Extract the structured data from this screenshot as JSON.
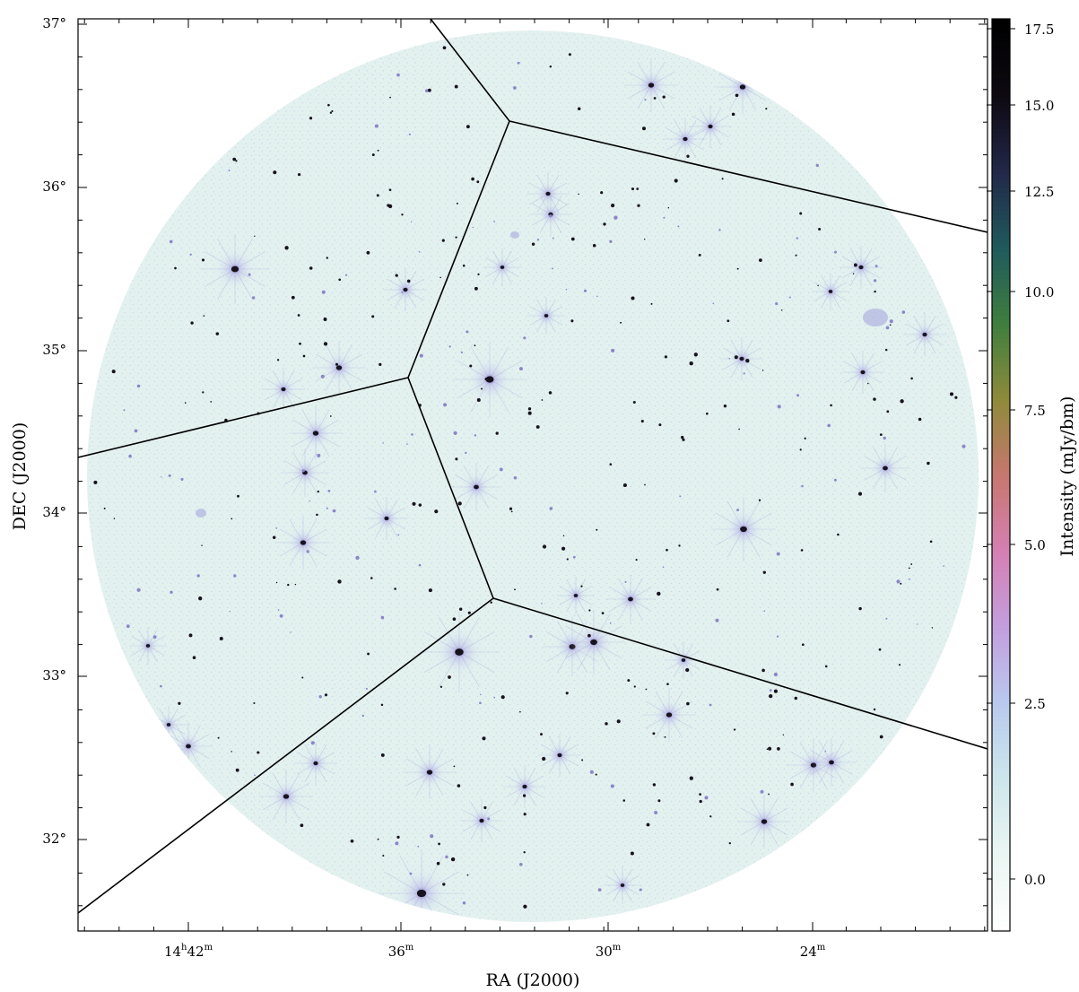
{
  "image": {
    "subject": "radio sky mosaic with facet boundaries",
    "axes": {
      "x_title": "RA (J2000)",
      "y_title": "DEC (J2000)",
      "ra_ticks": [
        {
          "hours": "14",
          "minutes": "42"
        },
        {
          "minutes": "36"
        },
        {
          "minutes": "30"
        },
        {
          "minutes": "24"
        }
      ],
      "dec_ticks": [
        "37°",
        "36°",
        "35°",
        "34°",
        "33°",
        "32°"
      ]
    },
    "colorbar": {
      "label": "Intensity (mJy/bm)",
      "ticks": [
        "17.5",
        "15.0",
        "12.5",
        "10.0",
        "7.5",
        "5.0",
        "2.5",
        "0.0"
      ],
      "colormap": [
        "#ffffff",
        "#eaf6f3",
        "#cde6ec",
        "#b9c9ee",
        "#c39ede",
        "#d57fb3",
        "#c7776f",
        "#8f8a3a",
        "#3f7f3e",
        "#1f5a5c",
        "#22284a",
        "#0e0912",
        "#000000"
      ]
    },
    "colors": {
      "background_field": "#e3f1ef",
      "source": "#17131e",
      "halo": "#b7b6e8",
      "facet_line": "#000000"
    }
  }
}
